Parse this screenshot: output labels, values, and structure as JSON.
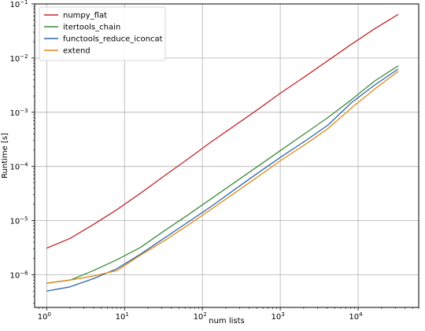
{
  "chart_data": {
    "type": "line",
    "xlabel": "num lists",
    "ylabel": "Runtime [s]",
    "xscale": "log",
    "yscale": "log",
    "xlim": [
      0.7,
      60000
    ],
    "ylim": [
      2.5e-07,
      0.1
    ],
    "grid": true,
    "legend_position": "top-left",
    "x_ticks": [
      {
        "value": 1,
        "base": "10",
        "exp": "0"
      },
      {
        "value": 10,
        "base": "10",
        "exp": "1"
      },
      {
        "value": 100,
        "base": "10",
        "exp": "2"
      },
      {
        "value": 1000,
        "base": "10",
        "exp": "3"
      },
      {
        "value": 10000,
        "base": "10",
        "exp": "4"
      }
    ],
    "y_ticks": [
      {
        "value": 1e-06,
        "base": "10",
        "exp": "−6"
      },
      {
        "value": 1e-05,
        "base": "10",
        "exp": "−5"
      },
      {
        "value": 0.0001,
        "base": "10",
        "exp": "−4"
      },
      {
        "value": 0.001,
        "base": "10",
        "exp": "−3"
      },
      {
        "value": 0.01,
        "base": "10",
        "exp": "−2"
      },
      {
        "value": 0.1,
        "base": "10",
        "exp": "−1"
      }
    ],
    "x": [
      1,
      2,
      4,
      8,
      16,
      32,
      64,
      128,
      256,
      512,
      1024,
      2048,
      4096,
      8192,
      16384,
      32768
    ],
    "series": [
      {
        "name": "numpy_flat",
        "color": "#c1272d",
        "values": [
          3.1e-06,
          4.7e-06,
          8.5e-06,
          1.6e-05,
          3.2e-05,
          6.6e-05,
          0.000135,
          0.00028,
          0.00056,
          0.00112,
          0.0023,
          0.0045,
          0.009,
          0.018,
          0.035,
          0.064
        ]
      },
      {
        "name": "itertools_chain",
        "color": "#3b8a3b",
        "values": [
          7e-07,
          8e-07,
          1.2e-06,
          1.9e-06,
          3.2e-06,
          6.4e-06,
          1.25e-05,
          2.5e-05,
          5e-05,
          0.0001,
          0.0002,
          0.0004,
          0.0008,
          0.0017,
          0.0038,
          0.0072
        ]
      },
      {
        "name": "functools_reduce_iconcat",
        "color": "#2f65a8",
        "values": [
          5e-07,
          6e-07,
          8.5e-07,
          1.3e-06,
          2.4e-06,
          4.7e-06,
          9.2e-06,
          1.8e-05,
          3.7e-05,
          7.5e-05,
          0.00015,
          0.00029,
          0.00058,
          0.0015,
          0.0032,
          0.0063
        ]
      },
      {
        "name": "extend",
        "color": "#e08a1c",
        "values": [
          7e-07,
          8e-07,
          9.5e-07,
          1.2e-06,
          2.3e-06,
          4.2e-06,
          8.1e-06,
          1.6e-05,
          3.2e-05,
          6.4e-05,
          0.00013,
          0.00025,
          0.0005,
          0.0012,
          0.0027,
          0.0057
        ]
      }
    ]
  }
}
